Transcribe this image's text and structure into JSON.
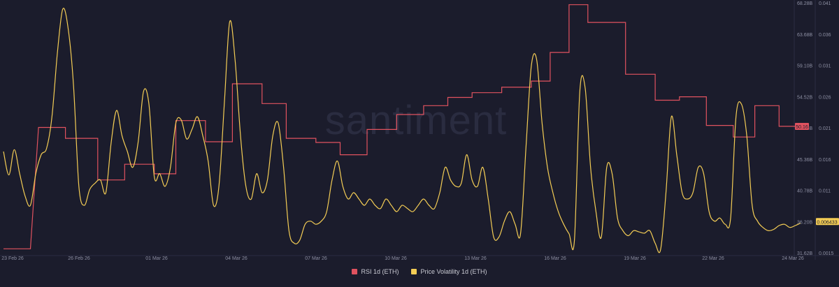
{
  "chart_data": {
    "type": "line",
    "watermark": "santiment",
    "x_tick_labels": [
      "23 Feb 26",
      "26 Feb 26",
      "01 Mar 26",
      "04 Mar 26",
      "07 Mar 26",
      "10 Mar 26",
      "13 Mar 26",
      "16 Mar 26",
      "19 Mar 26",
      "22 Mar 26",
      "24 Mar 26"
    ],
    "x_range": [
      "2026-02-23",
      "2026-03-24"
    ],
    "left_axis": {
      "ticks": [
        "68.28B",
        "63.68B",
        "59.10B",
        "54.52B",
        "49.94B",
        "45.36B",
        "40.78B",
        "36.20B",
        "31.62B"
      ],
      "min": 31.62,
      "max": 68.28
    },
    "right_axis": {
      "ticks": [
        "0.041",
        "0.036",
        "0.031",
        "0.026",
        "0.021",
        "0.016",
        "0.011",
        "0.006",
        "0.0015"
      ],
      "min": 0.0015,
      "max": 0.041
    },
    "series": [
      {
        "name": "RSI 1d (ETH)",
        "color": "#e0525f",
        "axis": "left",
        "last_value_label": "50.16",
        "step_points": [
          [
            "2026-02-23",
            32.2
          ],
          [
            "2026-02-24",
            32.2
          ],
          [
            "2026-02-24.3",
            50.0
          ],
          [
            "2026-02-25.3",
            50.0
          ],
          [
            "2026-02-25.3",
            48.4
          ],
          [
            "2026-02-26.5",
            48.4
          ],
          [
            "2026-02-26.5",
            42.3
          ],
          [
            "2026-02-27.5",
            42.3
          ],
          [
            "2026-02-27.5",
            44.6
          ],
          [
            "2026-02-28.6",
            44.6
          ],
          [
            "2026-02-28.6",
            43.2
          ],
          [
            "2026-03-01.4",
            43.2
          ],
          [
            "2026-03-01.4",
            51.0
          ],
          [
            "2026-03-02.5",
            51.0
          ],
          [
            "2026-03-02.5",
            47.9
          ],
          [
            "2026-03-03.5",
            47.9
          ],
          [
            "2026-03-03.5",
            56.4
          ],
          [
            "2026-03-04.6",
            56.4
          ],
          [
            "2026-03-04.6",
            53.5
          ],
          [
            "2026-03-05.5",
            53.5
          ],
          [
            "2026-03-05.5",
            48.4
          ],
          [
            "2026-03-06.6",
            48.4
          ],
          [
            "2026-03-06.6",
            47.8
          ],
          [
            "2026-03-07.5",
            47.8
          ],
          [
            "2026-03-07.5",
            46.0
          ],
          [
            "2026-03-08.5",
            46.0
          ],
          [
            "2026-03-08.5",
            49.7
          ],
          [
            "2026-03-09.6",
            49.7
          ],
          [
            "2026-03-09.6",
            51.9
          ],
          [
            "2026-03-10.6",
            51.9
          ],
          [
            "2026-03-10.6",
            53.2
          ],
          [
            "2026-03-11.5",
            53.2
          ],
          [
            "2026-03-11.5",
            54.4
          ],
          [
            "2026-03-12.4",
            54.4
          ],
          [
            "2026-03-12.4",
            55.1
          ],
          [
            "2026-03-13.5",
            55.1
          ],
          [
            "2026-03-13.5",
            55.9
          ],
          [
            "2026-03-14.6",
            55.9
          ],
          [
            "2026-03-14.6",
            56.8
          ],
          [
            "2026-03-15.3",
            56.8
          ],
          [
            "2026-03-15.3",
            61.0
          ],
          [
            "2026-03-16.0",
            61.0
          ],
          [
            "2026-03-16.0",
            68.0
          ],
          [
            "2026-03-16.7",
            68.0
          ],
          [
            "2026-03-16.7",
            65.4
          ],
          [
            "2026-03-18.1",
            65.4
          ],
          [
            "2026-03-18.1",
            57.8
          ],
          [
            "2026-03-19.2",
            57.8
          ],
          [
            "2026-03-19.2",
            54.0
          ],
          [
            "2026-03-20.1",
            54.0
          ],
          [
            "2026-03-20.1",
            54.5
          ],
          [
            "2026-03-21.1",
            54.5
          ],
          [
            "2026-03-21.1",
            50.3
          ],
          [
            "2026-03-22.1",
            50.3
          ],
          [
            "2026-03-22.1",
            48.6
          ],
          [
            "2026-03-22.9",
            48.6
          ],
          [
            "2026-03-22.9",
            53.2
          ],
          [
            "2026-03-23.8",
            53.2
          ],
          [
            "2026-03-23.8",
            50.16
          ],
          [
            "2026-03-24.6",
            50.16
          ]
        ]
      },
      {
        "name": "Price Volatility 1d (ETH)",
        "color": "#f4cd55",
        "axis": "right",
        "last_value_label": "0.006433",
        "points": [
          [
            "2026-02-23.0",
            0.0175
          ],
          [
            "2026-02-23.2",
            0.0138
          ],
          [
            "2026-02-23.4",
            0.0178
          ],
          [
            "2026-02-23.6",
            0.014
          ],
          [
            "2026-02-23.8",
            0.0105
          ],
          [
            "2026-02-24.0",
            0.009
          ],
          [
            "2026-02-24.2",
            0.014
          ],
          [
            "2026-02-24.4",
            0.017
          ],
          [
            "2026-02-24.6",
            0.018
          ],
          [
            "2026-02-24.8",
            0.023
          ],
          [
            "2026-02-25.0",
            0.033
          ],
          [
            "2026-02-25.2",
            0.04
          ],
          [
            "2026-02-25.4",
            0.037
          ],
          [
            "2026-02-25.6",
            0.028
          ],
          [
            "2026-02-25.8",
            0.012
          ],
          [
            "2026-02-26.0",
            0.009
          ],
          [
            "2026-02-26.2",
            0.0115
          ],
          [
            "2026-02-26.4",
            0.0125
          ],
          [
            "2026-02-26.6",
            0.013
          ],
          [
            "2026-02-26.8",
            0.011
          ],
          [
            "2026-02-27.0",
            0.019
          ],
          [
            "2026-02-27.2",
            0.024
          ],
          [
            "2026-02-27.4",
            0.02
          ],
          [
            "2026-02-27.6",
            0.0175
          ],
          [
            "2026-02-27.8",
            0.015
          ],
          [
            "2026-02-28.0",
            0.019
          ],
          [
            "2026-02-28.2",
            0.027
          ],
          [
            "2026-02-28.4",
            0.025
          ],
          [
            "2026-02-28.6",
            0.0135
          ],
          [
            "2026-02-28.8",
            0.014
          ],
          [
            "2026-03-01.0",
            0.012
          ],
          [
            "2026-03-01.2",
            0.015
          ],
          [
            "2026-03-01.4",
            0.022
          ],
          [
            "2026-03-01.6",
            0.0225
          ],
          [
            "2026-03-01.8",
            0.0195
          ],
          [
            "2026-03-02.0",
            0.021
          ],
          [
            "2026-03-02.2",
            0.023
          ],
          [
            "2026-03-02.4",
            0.02
          ],
          [
            "2026-03-02.6",
            0.016
          ],
          [
            "2026-03-02.8",
            0.009
          ],
          [
            "2026-03-03.0",
            0.012
          ],
          [
            "2026-03-03.2",
            0.025
          ],
          [
            "2026-03-03.4",
            0.038
          ],
          [
            "2026-03-03.6",
            0.032
          ],
          [
            "2026-03-03.8",
            0.02
          ],
          [
            "2026-03-04.0",
            0.012
          ],
          [
            "2026-03-04.2",
            0.01
          ],
          [
            "2026-03-04.4",
            0.014
          ],
          [
            "2026-03-04.6",
            0.011
          ],
          [
            "2026-03-04.8",
            0.013
          ],
          [
            "2026-03-05.0",
            0.02
          ],
          [
            "2026-03-05.2",
            0.022
          ],
          [
            "2026-03-05.4",
            0.015
          ],
          [
            "2026-03-05.6",
            0.005
          ],
          [
            "2026-03-05.8",
            0.003
          ],
          [
            "2026-03-06.0",
            0.0035
          ],
          [
            "2026-03-06.2",
            0.006
          ],
          [
            "2026-03-06.4",
            0.0065
          ],
          [
            "2026-03-06.6",
            0.006
          ],
          [
            "2026-03-06.8",
            0.0065
          ],
          [
            "2026-03-07.0",
            0.008
          ],
          [
            "2026-03-07.2",
            0.013
          ],
          [
            "2026-03-07.4",
            0.016
          ],
          [
            "2026-03-07.6",
            0.012
          ],
          [
            "2026-03-07.8",
            0.01
          ],
          [
            "2026-03-08.0",
            0.011
          ],
          [
            "2026-03-08.2",
            0.01
          ],
          [
            "2026-03-08.4",
            0.009
          ],
          [
            "2026-03-08.6",
            0.01
          ],
          [
            "2026-03-08.8",
            0.009
          ],
          [
            "2026-03-09.0",
            0.0085
          ],
          [
            "2026-03-09.2",
            0.01
          ],
          [
            "2026-03-09.4",
            0.009
          ],
          [
            "2026-03-09.6",
            0.008
          ],
          [
            "2026-03-09.8",
            0.009
          ],
          [
            "2026-03-10.0",
            0.0085
          ],
          [
            "2026-03-10.2",
            0.008
          ],
          [
            "2026-03-10.4",
            0.009
          ],
          [
            "2026-03-10.6",
            0.01
          ],
          [
            "2026-03-10.8",
            0.009
          ],
          [
            "2026-03-11.0",
            0.0085
          ],
          [
            "2026-03-11.2",
            0.011
          ],
          [
            "2026-03-11.4",
            0.015
          ],
          [
            "2026-03-11.6",
            0.013
          ],
          [
            "2026-03-11.8",
            0.012
          ],
          [
            "2026-03-12.0",
            0.0125
          ],
          [
            "2026-03-12.2",
            0.017
          ],
          [
            "2026-03-12.4",
            0.013
          ],
          [
            "2026-03-12.6",
            0.012
          ],
          [
            "2026-03-12.8",
            0.015
          ],
          [
            "2026-03-13.0",
            0.01
          ],
          [
            "2026-03-13.2",
            0.004
          ],
          [
            "2026-03-13.4",
            0.004
          ],
          [
            "2026-03-13.6",
            0.0065
          ],
          [
            "2026-03-13.8",
            0.008
          ],
          [
            "2026-03-14.0",
            0.006
          ],
          [
            "2026-03-14.2",
            0.0045
          ],
          [
            "2026-03-14.4",
            0.018
          ],
          [
            "2026-03-14.6",
            0.031
          ],
          [
            "2026-03-14.8",
            0.032
          ],
          [
            "2026-03-15.0",
            0.022
          ],
          [
            "2026-03-15.2",
            0.015
          ],
          [
            "2026-03-15.4",
            0.011
          ],
          [
            "2026-03-15.6",
            0.008
          ],
          [
            "2026-03-15.8",
            0.006
          ],
          [
            "2026-03-16.0",
            0.0045
          ],
          [
            "2026-03-16.2",
            0.0035
          ],
          [
            "2026-03-16.4",
            0.027
          ],
          [
            "2026-03-16.6",
            0.0275
          ],
          [
            "2026-03-16.8",
            0.015
          ],
          [
            "2026-03-17.0",
            0.008
          ],
          [
            "2026-03-17.2",
            0.004
          ],
          [
            "2026-03-17.4",
            0.015
          ],
          [
            "2026-03-17.6",
            0.014
          ],
          [
            "2026-03-17.8",
            0.007
          ],
          [
            "2026-03-18.0",
            0.005
          ],
          [
            "2026-03-18.2",
            0.0042
          ],
          [
            "2026-03-18.4",
            0.005
          ],
          [
            "2026-03-18.6",
            0.0048
          ],
          [
            "2026-03-18.8",
            0.0046
          ],
          [
            "2026-03-19.0",
            0.005
          ],
          [
            "2026-03-19.2",
            0.003
          ],
          [
            "2026-03-19.4",
            0.002
          ],
          [
            "2026-03-19.6",
            0.011
          ],
          [
            "2026-03-19.8",
            0.023
          ],
          [
            "2026-03-20.0",
            0.017
          ],
          [
            "2026-03-20.2",
            0.011
          ],
          [
            "2026-03-20.4",
            0.01
          ],
          [
            "2026-03-20.6",
            0.011
          ],
          [
            "2026-03-20.8",
            0.015
          ],
          [
            "2026-03-21.0",
            0.014
          ],
          [
            "2026-03-21.2",
            0.008
          ],
          [
            "2026-03-21.4",
            0.0065
          ],
          [
            "2026-03-21.6",
            0.007
          ],
          [
            "2026-03-21.8",
            0.006
          ],
          [
            "2026-03-22.0",
            0.007
          ],
          [
            "2026-03-22.2",
            0.023
          ],
          [
            "2026-03-22.4",
            0.025
          ],
          [
            "2026-03-22.6",
            0.02
          ],
          [
            "2026-03-22.8",
            0.009
          ],
          [
            "2026-03-23.0",
            0.0065
          ],
          [
            "2026-03-23.2",
            0.0055
          ],
          [
            "2026-03-23.4",
            0.005
          ],
          [
            "2026-03-23.6",
            0.0052
          ],
          [
            "2026-03-23.8",
            0.0058
          ],
          [
            "2026-03-24.0",
            0.006
          ],
          [
            "2026-03-24.2",
            0.0055
          ],
          [
            "2026-03-24.4",
            0.0058
          ],
          [
            "2026-03-24.6",
            0.0062
          ]
        ]
      }
    ]
  }
}
